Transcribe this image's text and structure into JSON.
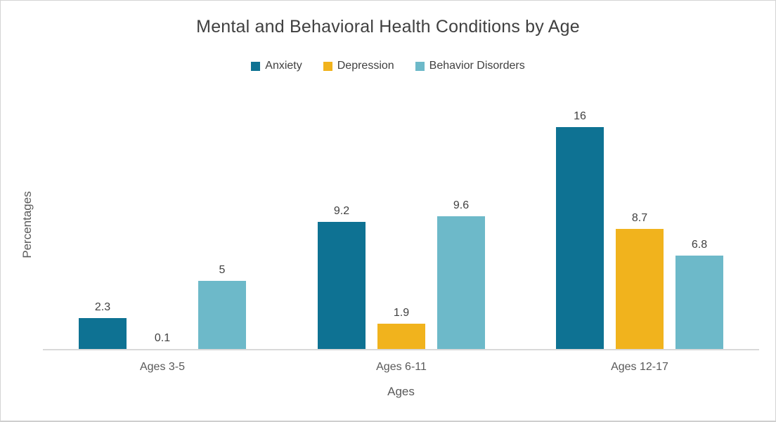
{
  "chart_data": {
    "type": "bar",
    "title": "Mental and Behavioral Health Conditions by Age",
    "xlabel": "Ages",
    "ylabel": "Percentages",
    "categories": [
      "Ages 3-5",
      "Ages 6-11",
      "Ages 12-17"
    ],
    "series": [
      {
        "name": "Anxiety",
        "color": "#0e7293",
        "values": [
          2.3,
          9.2,
          16
        ]
      },
      {
        "name": "Depression",
        "color": "#f1b31d",
        "values": [
          0.1,
          1.9,
          8.7
        ]
      },
      {
        "name": "Behavior Disorders",
        "color": "#6db9c9",
        "values": [
          5,
          9.6,
          6.8
        ]
      }
    ],
    "ylim": [
      0,
      18
    ],
    "grid": false,
    "y_ticks_visible": false,
    "legend_position": "top",
    "data_labels": true,
    "axis_line_color": "#d9d9d9",
    "text_colors": {
      "title": "#404040",
      "data_labels": "#404040",
      "axis_labels": "#595959"
    }
  }
}
